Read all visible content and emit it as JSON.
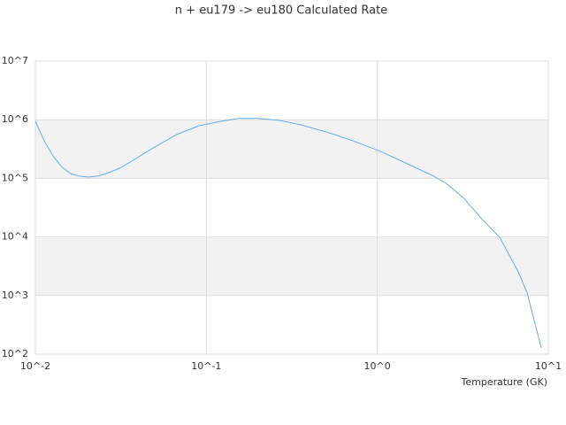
{
  "chart_data": {
    "type": "line",
    "title": "n + eu179 -> eu180 Calculated Rate",
    "x_label": "Temperature (GK)",
    "x": [
      0.01,
      0.0113,
      0.0127,
      0.0143,
      0.0161,
      0.0181,
      0.0204,
      0.023,
      0.0259,
      0.031,
      0.037,
      0.0443,
      0.053,
      0.0672,
      0.0906,
      0.122,
      0.155,
      0.197,
      0.264,
      0.356,
      0.54,
      0.73,
      1.04,
      1.48,
      2.1,
      2.53,
      3.2,
      4.1,
      5.2,
      6.6,
      7.5,
      9.1
    ],
    "series": [
      {
        "name": "n + eu179 -> eu180",
        "color": "#6aaae8",
        "values": [
          940000,
          430000,
          240000,
          155000,
          120000,
          109000,
          105000,
          109000,
          120000,
          148000,
          200000,
          277000,
          380000,
          560000,
          790000,
          940000,
          1050000,
          1050000,
          980000,
          820000,
          580000,
          430000,
          290000,
          180000,
          112000,
          82000,
          46000,
          20000,
          9800,
          2700,
          1140,
          128
        ]
      }
    ],
    "xlim": [
      0.01,
      10
    ],
    "ylim": [
      100,
      10000000
    ],
    "xticks": [
      {
        "value": 0.01,
        "label": "10^-2"
      },
      {
        "value": 0.1,
        "label": "10^-1"
      },
      {
        "value": 1,
        "label": "10^0"
      },
      {
        "value": 10,
        "label": "10^1"
      }
    ],
    "yticks": [
      {
        "value": 100,
        "label": "10^2"
      },
      {
        "value": 1000,
        "label": "10^3"
      },
      {
        "value": 10000,
        "label": "10^4"
      },
      {
        "value": 100000,
        "label": "10^5"
      },
      {
        "value": 1000000,
        "label": "10^6"
      },
      {
        "value": 10000000,
        "label": "10^7"
      }
    ],
    "xscale": "log",
    "yscale": "log",
    "grid": true,
    "band_color": "#f2f2f2"
  }
}
